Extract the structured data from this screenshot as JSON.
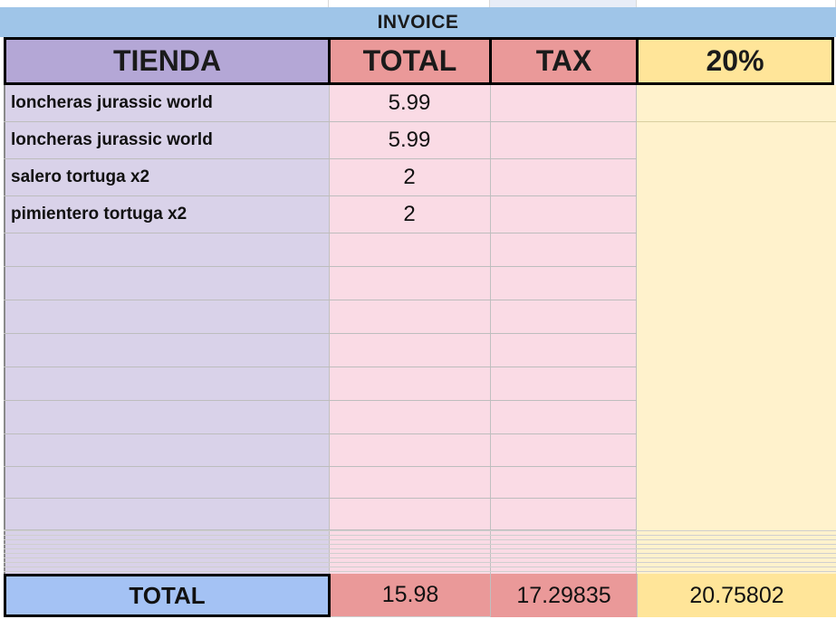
{
  "sheet": {
    "title": "INVOICE",
    "headers": {
      "tienda": "TIENDA",
      "total": "TOTAL",
      "tax": "TAX",
      "percent": "20%"
    },
    "rows": [
      {
        "item": "loncheras jurassic world",
        "total": "5.99"
      },
      {
        "item": "loncheras jurassic world",
        "total": "5.99"
      },
      {
        "item": "salero tortuga x2",
        "total": "2"
      },
      {
        "item": "pimientero tortuga x2",
        "total": "2"
      }
    ],
    "totals": {
      "label": "TOTAL",
      "total": "15.98",
      "tax": "17.29835",
      "percent": "20.75802"
    }
  },
  "colors": {
    "title_bg": "#9fc5e8",
    "tienda_header": "#b4a7d6",
    "tienda_body": "#d9d2e9",
    "total_header": "#ea9999",
    "total_body": "#fadbe5",
    "percent_header": "#ffe599",
    "percent_body": "#fff2cc",
    "total_label_bg": "#a4c2f4"
  }
}
